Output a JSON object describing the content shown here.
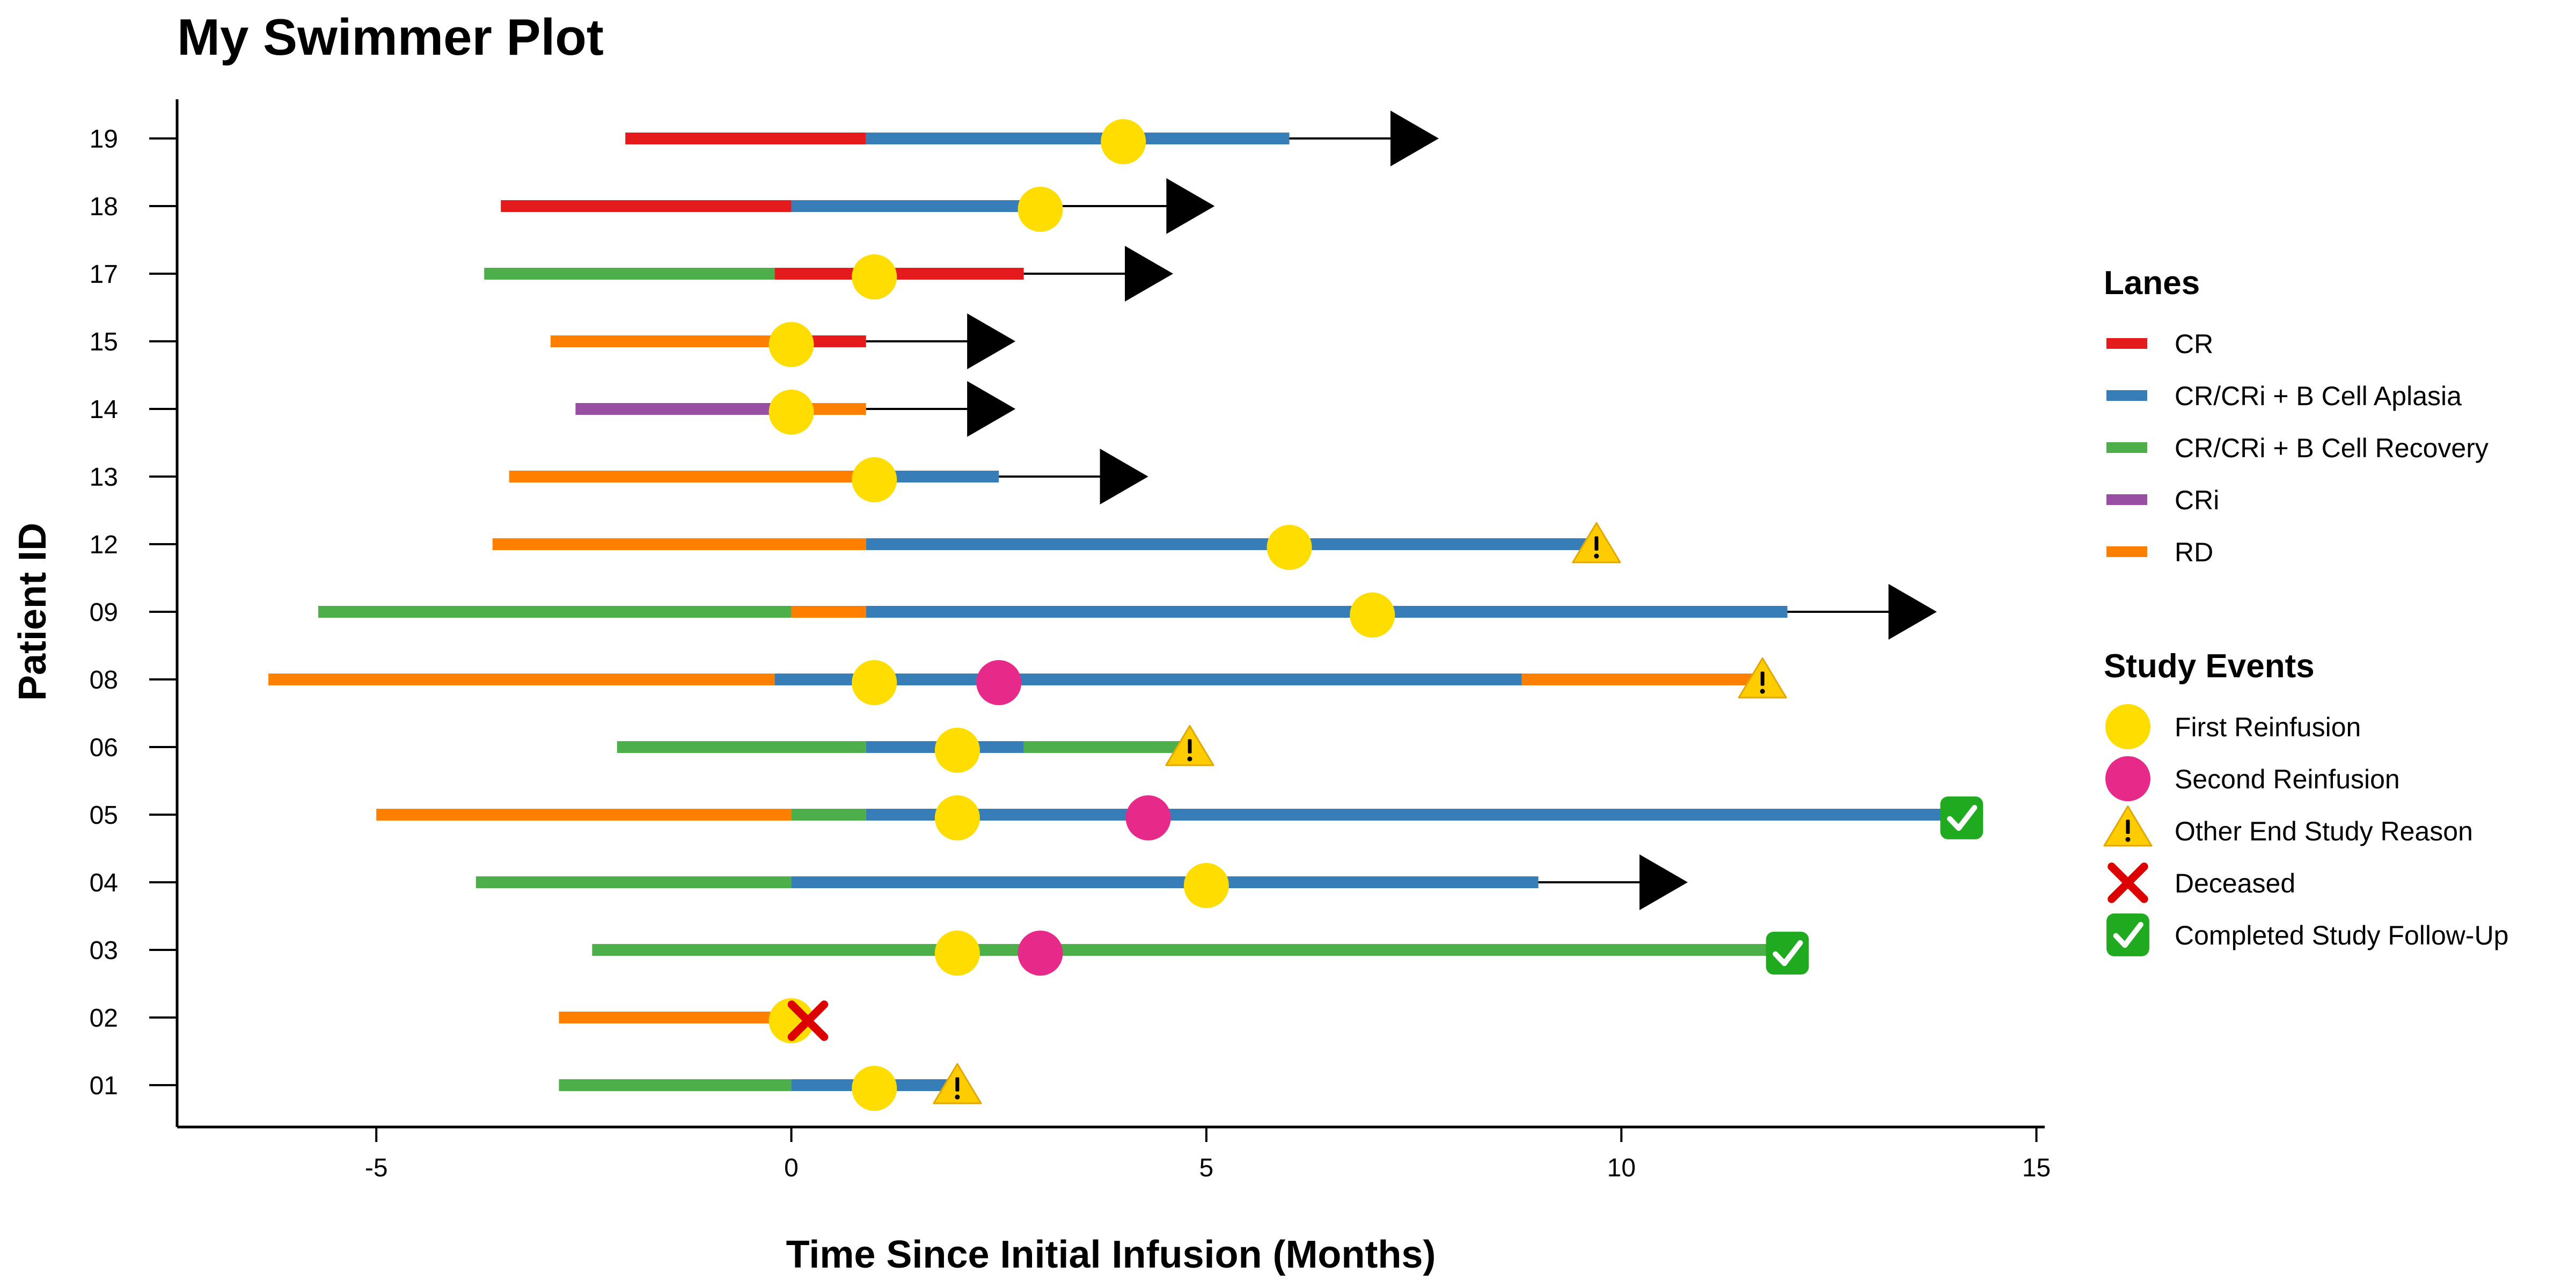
{
  "chart_data": {
    "type": "swimmer",
    "title": "My Swimmer Plot",
    "xlabel": "Time Since Initial Infusion (Months)",
    "ylabel": "Patient ID",
    "xlim": [
      -7.4,
      15.1
    ],
    "x_ticks": [
      -5,
      0,
      5,
      10,
      15
    ],
    "grid": false,
    "colors": {
      "CR": "#e41a1c",
      "CR/CRi + B Cell Aplasia": "#377eb8",
      "CR/CRi + B Cell Recovery": "#4daf4a",
      "CRi": "#984ea3",
      "RD": "#ff7f00",
      "First Reinfusion": "#ffdd00",
      "Second Reinfusion": "#e7298a",
      "Deceased": "#dd0000",
      "Completed Study Follow-Up": "#1faa1f",
      "Other End Study Reason": "#ffcc00"
    },
    "patients": [
      {
        "id": "01",
        "lanes": [
          [
            -2.8,
            0,
            "CR/CRi + B Cell Recovery"
          ],
          [
            0,
            1.9,
            "CR/CRi + B Cell Aplasia"
          ]
        ],
        "events": [
          [
            1,
            "First Reinfusion"
          ],
          [
            2,
            "Other End Study Reason"
          ]
        ]
      },
      {
        "id": "02",
        "lanes": [
          [
            -2.8,
            0,
            "RD"
          ]
        ],
        "events": [
          [
            0,
            "First Reinfusion"
          ],
          [
            0.2,
            "Deceased"
          ]
        ]
      },
      {
        "id": "03",
        "lanes": [
          [
            -2.4,
            12,
            "CR/CRi + B Cell Recovery"
          ]
        ],
        "events": [
          [
            2,
            "First Reinfusion"
          ],
          [
            3,
            "Second Reinfusion"
          ],
          [
            12,
            "Completed Study Follow-Up"
          ]
        ]
      },
      {
        "id": "04",
        "lanes": [
          [
            -3.8,
            0,
            "CR/CRi + B Cell Recovery"
          ],
          [
            0,
            9,
            "CR/CRi + B Cell Aplasia"
          ]
        ],
        "events": [
          [
            5,
            "First Reinfusion"
          ]
        ],
        "ongoing_to": 10.8
      },
      {
        "id": "05",
        "lanes": [
          [
            -5,
            0,
            "RD"
          ],
          [
            0,
            0.9,
            "CR/CRi + B Cell Recovery"
          ],
          [
            0.9,
            14,
            "CR/CRi + B Cell Aplasia"
          ]
        ],
        "events": [
          [
            2,
            "First Reinfusion"
          ],
          [
            4.3,
            "Second Reinfusion"
          ],
          [
            14.1,
            "Completed Study Follow-Up"
          ]
        ]
      },
      {
        "id": "06",
        "lanes": [
          [
            -2.1,
            0.9,
            "CR/CRi + B Cell Recovery"
          ],
          [
            0.9,
            2.8,
            "CR/CRi + B Cell Aplasia"
          ],
          [
            2.8,
            4.8,
            "CR/CRi + B Cell Recovery"
          ]
        ],
        "events": [
          [
            2,
            "First Reinfusion"
          ],
          [
            4.8,
            "Other End Study Reason"
          ]
        ]
      },
      {
        "id": "08",
        "lanes": [
          [
            -6.3,
            -0.2,
            "RD"
          ],
          [
            -0.2,
            8.8,
            "CR/CRi + B Cell Aplasia"
          ],
          [
            8.8,
            11.7,
            "RD"
          ]
        ],
        "events": [
          [
            1,
            "First Reinfusion"
          ],
          [
            2.5,
            "Second Reinfusion"
          ],
          [
            11.7,
            "Other End Study Reason"
          ]
        ]
      },
      {
        "id": "09",
        "lanes": [
          [
            -5.7,
            0,
            "CR/CRi + B Cell Recovery"
          ],
          [
            0,
            0.9,
            "RD"
          ],
          [
            0.9,
            12,
            "CR/CRi + B Cell Aplasia"
          ]
        ],
        "events": [
          [
            7,
            "First Reinfusion"
          ]
        ],
        "ongoing_to": 13.8
      },
      {
        "id": "12",
        "lanes": [
          [
            -3.6,
            0.9,
            "RD"
          ],
          [
            0.9,
            9.7,
            "CR/CRi + B Cell Aplasia"
          ]
        ],
        "events": [
          [
            6,
            "First Reinfusion"
          ],
          [
            9.7,
            "Other End Study Reason"
          ]
        ]
      },
      {
        "id": "13",
        "lanes": [
          [
            -3.4,
            1,
            "RD"
          ],
          [
            1,
            2.5,
            "CR/CRi + B Cell Aplasia"
          ]
        ],
        "events": [
          [
            1,
            "First Reinfusion"
          ]
        ],
        "ongoing_to": 4.3
      },
      {
        "id": "14",
        "lanes": [
          [
            -2.6,
            -0.2,
            "CRi"
          ],
          [
            -0.2,
            0.9,
            "RD"
          ]
        ],
        "events": [
          [
            0,
            "First Reinfusion"
          ]
        ],
        "ongoing_to": 2.7
      },
      {
        "id": "15",
        "lanes": [
          [
            -2.9,
            0,
            "RD"
          ],
          [
            0,
            0.9,
            "CR"
          ]
        ],
        "events": [
          [
            0,
            "First Reinfusion"
          ]
        ],
        "ongoing_to": 2.7
      },
      {
        "id": "17",
        "lanes": [
          [
            -3.7,
            -0.2,
            "CR/CRi + B Cell Recovery"
          ],
          [
            -0.2,
            2.8,
            "CR"
          ]
        ],
        "events": [
          [
            1,
            "First Reinfusion"
          ]
        ],
        "ongoing_to": 4.6
      },
      {
        "id": "18",
        "lanes": [
          [
            -3.5,
            0,
            "CR"
          ],
          [
            0,
            3,
            "CR/CRi + B Cell Aplasia"
          ]
        ],
        "events": [
          [
            3,
            "First Reinfusion"
          ]
        ],
        "ongoing_to": 5.1
      },
      {
        "id": "19",
        "lanes": [
          [
            -2,
            0.9,
            "CR"
          ],
          [
            0.9,
            6,
            "CR/CRi + B Cell Aplasia"
          ]
        ],
        "events": [
          [
            4,
            "First Reinfusion"
          ]
        ],
        "ongoing_to": 7.8
      }
    ],
    "legend": {
      "position": "right",
      "lanes_title": "Lanes",
      "lanes": [
        "CR",
        "CR/CRi + B Cell Aplasia",
        "CR/CRi + B Cell Recovery",
        "CRi",
        "RD"
      ],
      "events_title": "Study Events",
      "events": [
        "First Reinfusion",
        "Second Reinfusion",
        "Other End Study Reason",
        "Deceased",
        "Completed Study Follow-Up"
      ]
    }
  }
}
